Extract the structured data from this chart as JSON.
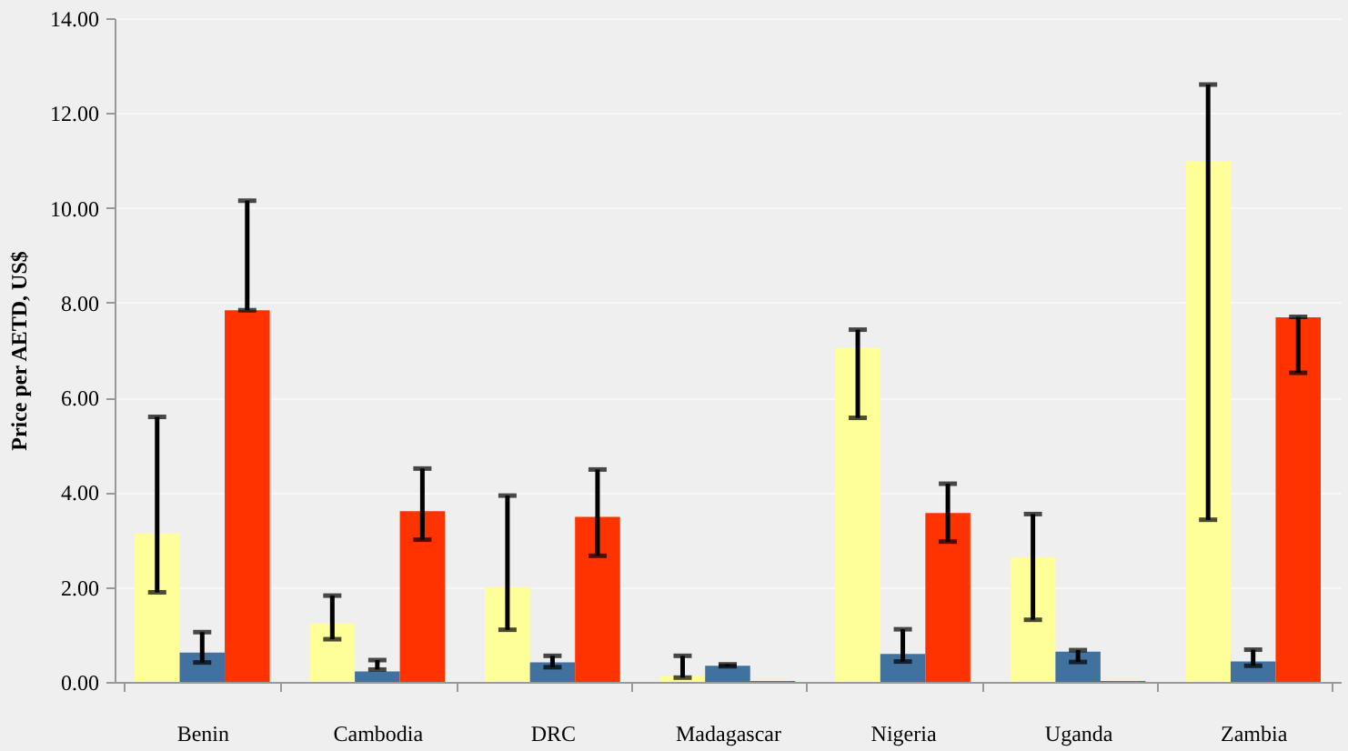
{
  "chart_data": {
    "type": "bar",
    "ylabel": "Price per AETD, US$",
    "categories": [
      "Benin",
      "Cambodia",
      "DRC",
      "Madagascar",
      "Nigeria",
      "Uganda",
      "Zambia"
    ],
    "series": [
      {
        "color": "#ffff99",
        "values": [
          3.13,
          1.23,
          2.0,
          0.12,
          7.05,
          2.63,
          10.99
        ],
        "errors": [
          [
            1.89,
            5.59
          ],
          [
            0.9,
            1.82
          ],
          [
            1.1,
            3.93
          ],
          [
            0.09,
            0.55
          ],
          [
            5.57,
            7.43
          ],
          [
            1.31,
            3.54
          ],
          [
            3.42,
            12.6
          ]
        ]
      },
      {
        "color": "#41729f",
        "values": [
          0.62,
          0.22,
          0.41,
          0.34,
          0.59,
          0.64,
          0.43
        ],
        "errors": [
          [
            0.41,
            1.05
          ],
          [
            0.26,
            0.46
          ],
          [
            0.31,
            0.55
          ],
          [
            0.33,
            0.37
          ],
          [
            0.43,
            1.11
          ],
          [
            0.42,
            0.67
          ],
          [
            0.34,
            0.68
          ]
        ]
      },
      {
        "color": "#ff3300",
        "values": [
          7.84,
          3.6,
          3.48,
          0.02,
          3.56,
          0.02,
          7.69
        ],
        "errors": [
          [
            7.84,
            10.15
          ],
          [
            3.0,
            4.5
          ],
          [
            2.66,
            4.48
          ],
          null,
          [
            2.96,
            4.18
          ],
          null,
          [
            6.52,
            7.7
          ]
        ]
      }
    ],
    "ylim": [
      0,
      14
    ],
    "yticks": [
      {
        "value": 0,
        "label": "0.00"
      },
      {
        "value": 2,
        "label": "2.00"
      },
      {
        "value": 4,
        "label": "4.00"
      },
      {
        "value": 6,
        "label": "6.00"
      },
      {
        "value": 8,
        "label": "8.00"
      },
      {
        "value": 10,
        "label": "10.00"
      },
      {
        "value": 12,
        "label": "12.00"
      },
      {
        "value": 14,
        "label": "14.00"
      }
    ],
    "grid": "y",
    "legend": false
  }
}
